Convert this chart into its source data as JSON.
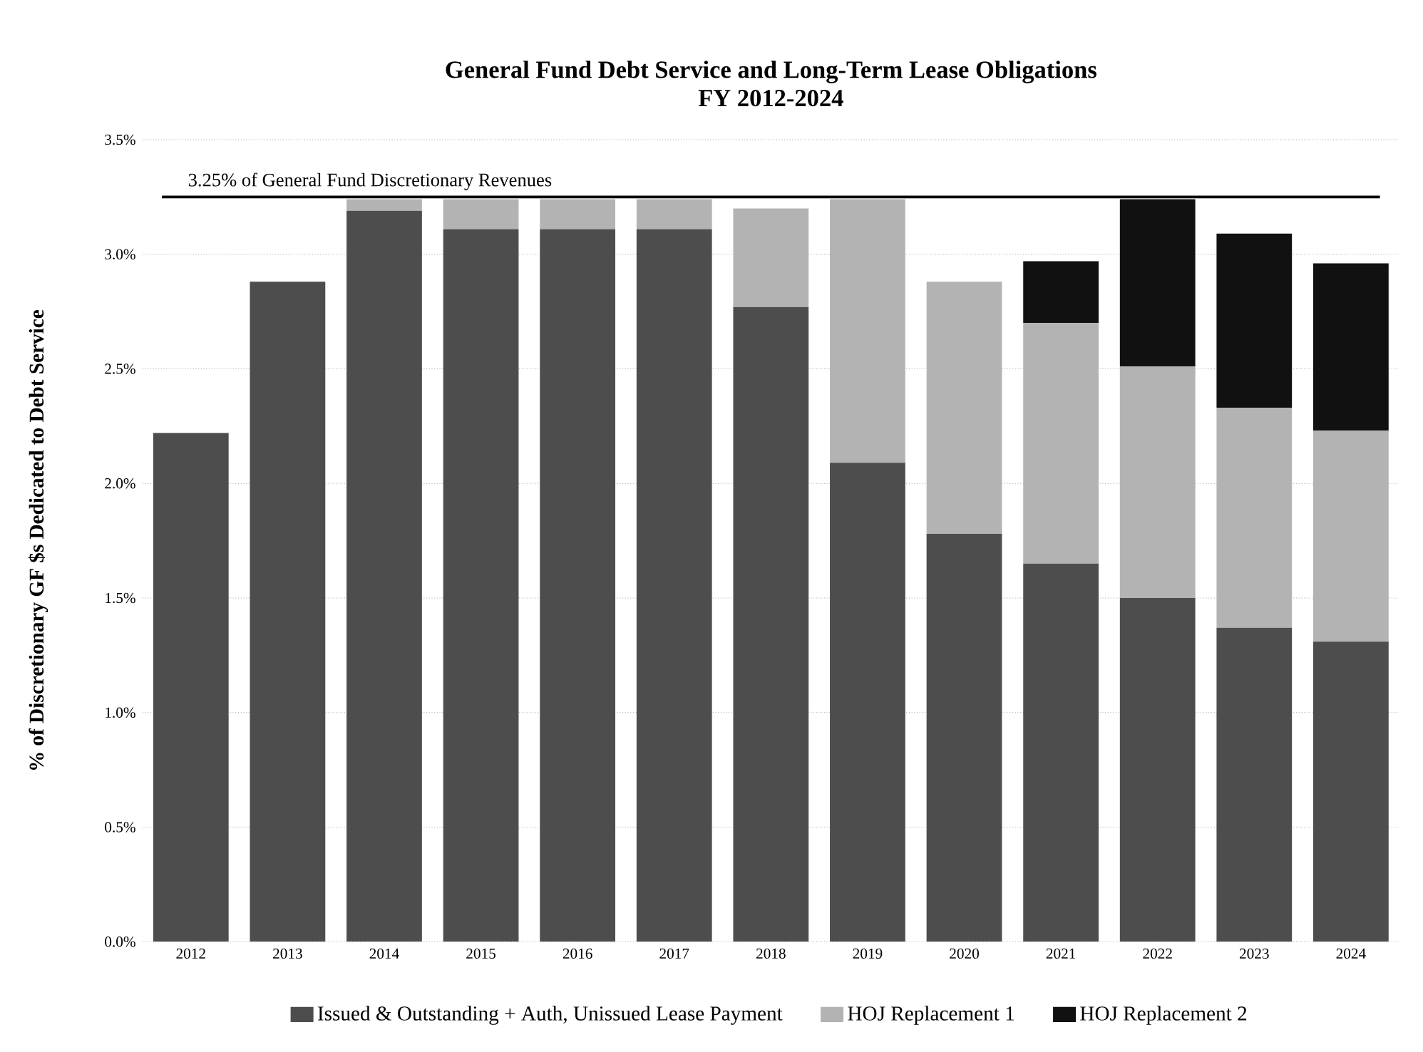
{
  "chart_data": {
    "type": "bar",
    "stacked": true,
    "title": "General Fund Debt Service and Long-Term Lease Obligations",
    "subtitle": "FY 2012-2024",
    "ylabel": "% of Discretionary GF $s Dedicated to Debt Service",
    "categories": [
      "2012",
      "2013",
      "2014",
      "2015",
      "2016",
      "2017",
      "2018",
      "2019",
      "2020",
      "2021",
      "2022",
      "2023",
      "2024"
    ],
    "series": [
      {
        "name": "Issued & Outstanding + Auth, Unissued Lease Payment",
        "color": "#4d4d4d",
        "values": [
          2.22,
          2.88,
          3.19,
          3.11,
          3.11,
          3.11,
          2.77,
          2.09,
          1.78,
          1.65,
          1.5,
          1.37,
          1.31
        ]
      },
      {
        "name": "HOJ Replacement 1",
        "color": "#b3b3b3",
        "values": [
          null,
          null,
          0.05,
          0.13,
          0.13,
          0.13,
          0.43,
          1.15,
          1.1,
          1.05,
          1.01,
          0.96,
          0.92
        ]
      },
      {
        "name": "HOJ Replacement 2",
        "color": "#111111",
        "values": [
          null,
          null,
          null,
          null,
          null,
          null,
          null,
          null,
          null,
          0.27,
          0.73,
          0.76,
          0.73
        ]
      }
    ],
    "ylim": [
      0,
      3.5
    ],
    "yticks": [
      {
        "value": 0,
        "label": "0.0%"
      },
      {
        "value": 0.5,
        "label": "0.5%"
      },
      {
        "value": 1.0,
        "label": "1.0%"
      },
      {
        "value": 1.5,
        "label": "1.5%"
      },
      {
        "value": 2.0,
        "label": "2.0%"
      },
      {
        "value": 2.5,
        "label": "2.5%"
      },
      {
        "value": 3.0,
        "label": "3.0%"
      },
      {
        "value": 3.5,
        "label": "3.5%"
      }
    ],
    "ref_lines": [
      {
        "axis": "y",
        "value": 3.25,
        "label": "3.25% of General Fund Discretionary Revenues",
        "color": "#000000"
      }
    ],
    "grid": "y",
    "legend": "bottom"
  }
}
